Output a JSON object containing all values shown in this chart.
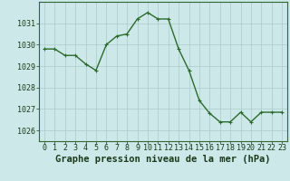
{
  "x": [
    0,
    1,
    2,
    3,
    4,
    5,
    6,
    7,
    8,
    9,
    10,
    11,
    12,
    13,
    14,
    15,
    16,
    17,
    18,
    19,
    20,
    21,
    22,
    23
  ],
  "y": [
    1029.8,
    1029.8,
    1029.5,
    1029.5,
    1029.1,
    1028.8,
    1030.0,
    1030.4,
    1030.5,
    1031.2,
    1031.5,
    1031.2,
    1031.2,
    1029.8,
    1028.8,
    1027.4,
    1026.8,
    1026.4,
    1026.4,
    1026.85,
    1026.4,
    1026.85,
    1026.85,
    1026.85
  ],
  "line_color": "#2d6a2d",
  "marker": "+",
  "marker_size": 3,
  "bg_color": "#cce8e8",
  "grid_color": "#aacccc",
  "xlabel": "Graphe pression niveau de la mer (hPa)",
  "xlabel_fontsize": 7.5,
  "ylim": [
    1025.5,
    1032.0
  ],
  "yticks": [
    1026,
    1027,
    1028,
    1029,
    1030,
    1031
  ],
  "xticks": [
    0,
    1,
    2,
    3,
    4,
    5,
    6,
    7,
    8,
    9,
    10,
    11,
    12,
    13,
    14,
    15,
    16,
    17,
    18,
    19,
    20,
    21,
    22,
    23
  ],
  "tick_fontsize": 6.0,
  "label_color": "#1a3a1a",
  "axis_color": "#336633",
  "linewidth": 1.0,
  "markeredgewidth": 0.8
}
